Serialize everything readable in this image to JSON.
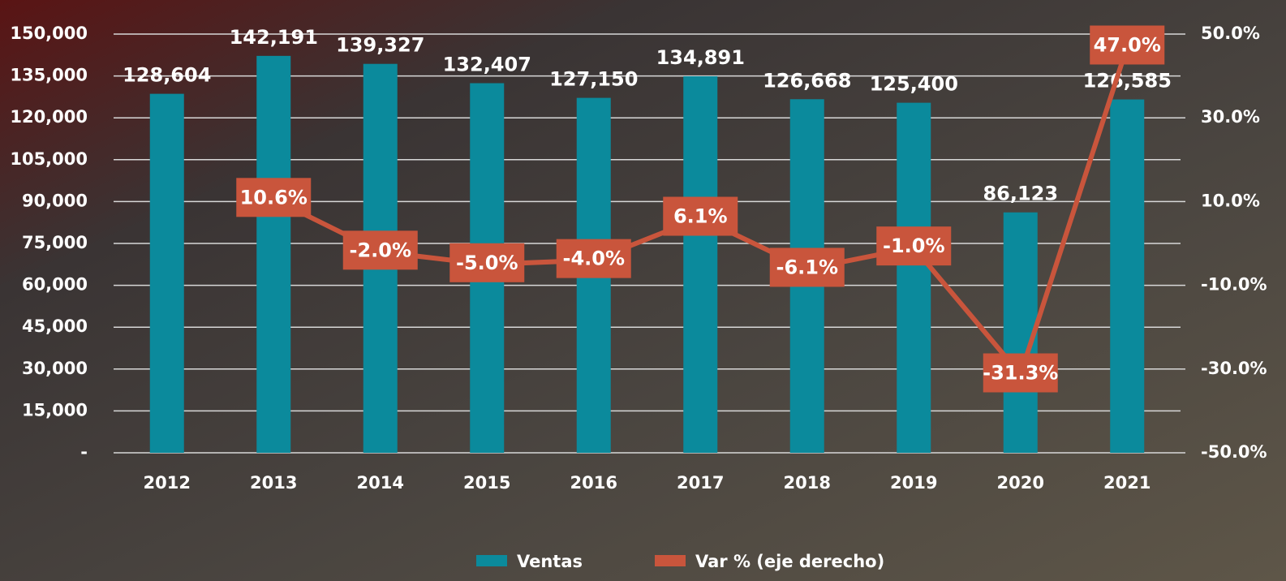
{
  "chart_data": {
    "type": "bar-line",
    "categories": [
      "2012",
      "2013",
      "2014",
      "2015",
      "2016",
      "2017",
      "2018",
      "2019",
      "2020",
      "2021"
    ],
    "series": [
      {
        "name": "Ventas",
        "type": "bar",
        "color": "#0b8a9c",
        "values": [
          128604,
          142191,
          139327,
          132407,
          127150,
          134891,
          126668,
          125400,
          86123,
          126585
        ],
        "value_labels": [
          "128,604",
          "142,191",
          "139,327",
          "132,407",
          "127,150",
          "134,891",
          "126,668",
          "125,400",
          "86,123",
          "126,585"
        ]
      },
      {
        "name": "Var % (eje derecho)",
        "type": "line",
        "axis": "y2",
        "color": "#c9553c",
        "values": [
          null,
          10.6,
          -2.0,
          -5.0,
          -4.0,
          6.1,
          -6.1,
          -1.0,
          -31.3,
          47.0
        ],
        "value_labels": [
          null,
          "10.6%",
          "-2.0%",
          "-5.0%",
          "-4.0%",
          "6.1%",
          "-6.1%",
          "-1.0%",
          "-31.3%",
          "47.0%"
        ]
      }
    ],
    "ylim": [
      0,
      150000
    ],
    "yticks": [
      {
        "value": 0,
        "label": "-"
      },
      {
        "value": 15000,
        "label": "15,000"
      },
      {
        "value": 30000,
        "label": "30,000"
      },
      {
        "value": 45000,
        "label": "45,000"
      },
      {
        "value": 60000,
        "label": "60,000"
      },
      {
        "value": 75000,
        "label": "75,000"
      },
      {
        "value": 90000,
        "label": "90,000"
      },
      {
        "value": 105000,
        "label": "105,000"
      },
      {
        "value": 120000,
        "label": "120,000"
      },
      {
        "value": 135000,
        "label": "135,000"
      },
      {
        "value": 150000,
        "label": "150,000"
      }
    ],
    "y2lim": [
      -50,
      50
    ],
    "y2ticks": [
      {
        "value": -50,
        "label": "-50.0%"
      },
      {
        "value": -30,
        "label": "-30.0%"
      },
      {
        "value": -10,
        "label": "-10.0%"
      },
      {
        "value": 10,
        "label": "10.0%"
      },
      {
        "value": 30,
        "label": "30.0%"
      },
      {
        "value": 50,
        "label": "50.0%"
      }
    ],
    "grid": true
  }
}
